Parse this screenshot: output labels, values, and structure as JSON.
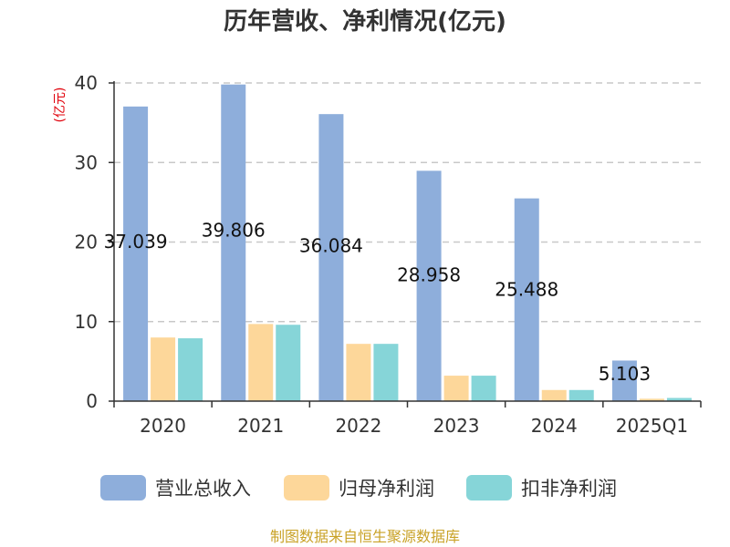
{
  "title": "历年营收、净利情况(亿元)",
  "source": "制图数据来自恒生聚源数据库",
  "chart_data": {
    "type": "bar",
    "title": "历年营收、净利情况(亿元)",
    "xlabel": "",
    "ylabel": "(亿元)",
    "ylim": [
      0,
      40
    ],
    "yticks": [
      0,
      10,
      20,
      30,
      40
    ],
    "grid": true,
    "legend_position": "bottom",
    "categories": [
      "2020",
      "2021",
      "2022",
      "2023",
      "2024",
      "2025Q1"
    ],
    "series": [
      {
        "name": "营业总收入",
        "color": "#8eaedb",
        "values": [
          37.039,
          39.806,
          36.084,
          28.958,
          25.488,
          5.103
        ],
        "labels": [
          "37.039",
          "39.806",
          "36.084",
          "28.958",
          "25.488",
          "5.103"
        ]
      },
      {
        "name": "归母净利润",
        "color": "#fdd79a",
        "values": [
          8.0,
          9.7,
          7.2,
          3.2,
          1.4,
          0.3
        ]
      },
      {
        "name": "扣非净利润",
        "color": "#86d5d8",
        "values": [
          7.9,
          9.6,
          7.2,
          3.2,
          1.4,
          0.4
        ]
      }
    ]
  }
}
